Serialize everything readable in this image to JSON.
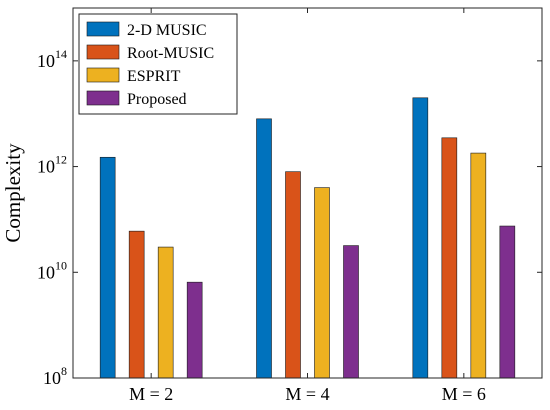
{
  "chart_data": {
    "type": "bar",
    "yscale": "log",
    "ylabel": "Complexity",
    "xlabel": "",
    "title": "",
    "categories": [
      "M = 2",
      "M = 4",
      "M = 6"
    ],
    "ylim": [
      100000000.0,
      1000000000000000.0
    ],
    "yticks": [
      {
        "base": "10",
        "exp": "8",
        "value": 100000000.0
      },
      {
        "base": "10",
        "exp": "10",
        "value": 10000000000.0
      },
      {
        "base": "10",
        "exp": "12",
        "value": 1000000000000.0
      },
      {
        "base": "10",
        "exp": "14",
        "value": 100000000000000.0
      }
    ],
    "series": [
      {
        "name": "2-D MUSIC",
        "color": "#0072BD",
        "values": [
          1500000000000.0,
          8000000000000.0,
          20000000000000.0
        ]
      },
      {
        "name": "Root-MUSIC",
        "color": "#D95319",
        "values": [
          60000000000.0,
          800000000000.0,
          3500000000000.0
        ]
      },
      {
        "name": "ESPRIT",
        "color": "#EDB120",
        "values": [
          30000000000.0,
          400000000000.0,
          1800000000000.0
        ]
      },
      {
        "name": "Proposed",
        "color": "#7E2F8E",
        "values": [
          6500000000.0,
          32000000000.0,
          75000000000.0
        ]
      }
    ],
    "legend_position": "top-left",
    "grid": false
  }
}
